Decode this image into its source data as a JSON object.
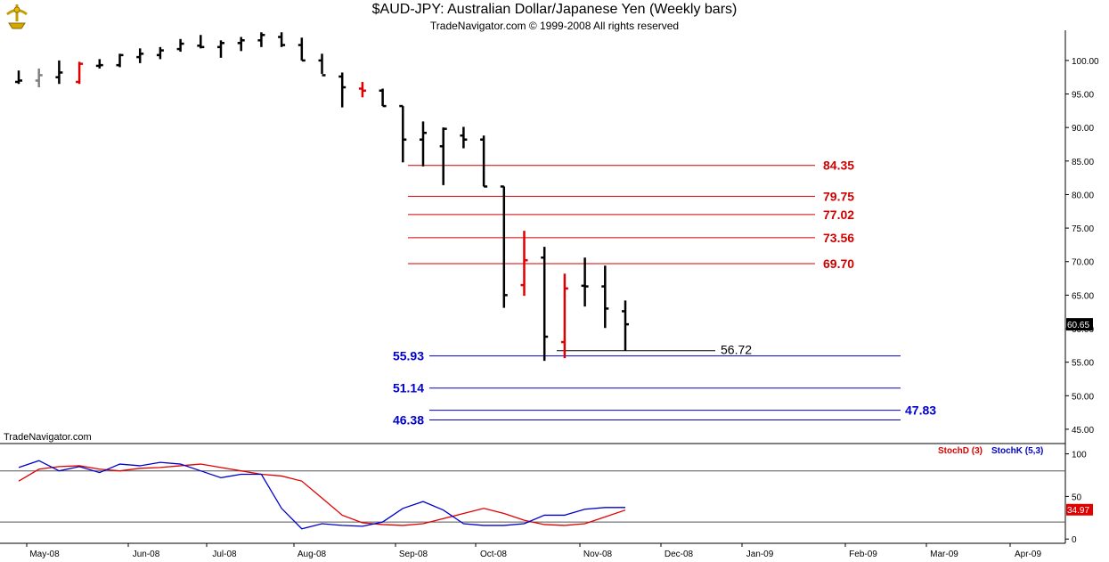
{
  "header": {
    "title": "$AUD-JPY:  Australian Dollar/Japanese Yen  (Weekly bars)",
    "subtitle": "TradeNavigator.com © 1999-2008 All rights reserved",
    "watermark": "TradeNavigator.com"
  },
  "colors": {
    "bar_up": "#000000",
    "bar_highlight": "#e00000",
    "bar_gray": "#808080",
    "fib_red": "#d00000",
    "fib_blue": "#0000cc",
    "stoch_d": "#e00000",
    "stoch_k": "#0000cc"
  },
  "chart_data": [
    {
      "type": "ohlc",
      "yticks": [
        "100.00",
        "95.00",
        "90.00",
        "85.00",
        "80.00",
        "75.00",
        "70.00",
        "65.00",
        "60.00",
        "55.00",
        "50.00",
        "45.00"
      ],
      "ylim": [
        43,
        104.5
      ],
      "x_tick_labels": [
        "May-08",
        "Jun-08",
        "Jul-08",
        "Aug-08",
        "Sep-08",
        "Oct-08",
        "Nov-08",
        "Dec-08",
        "Jan-09",
        "Feb-09",
        "Mar-09",
        "Apr-09"
      ],
      "last_price_label": "60.65",
      "bars": [
        {
          "o": 96.8,
          "h": 98.5,
          "l": 96.5,
          "c": 97.0,
          "color": "black"
        },
        {
          "o": 97.0,
          "h": 98.8,
          "l": 96.0,
          "c": 97.8,
          "color": "gray"
        },
        {
          "o": 97.5,
          "h": 100.0,
          "l": 96.5,
          "c": 98.2,
          "color": "black"
        },
        {
          "o": 96.8,
          "h": 99.8,
          "l": 96.5,
          "c": 99.5,
          "color": "red"
        },
        {
          "o": 99.2,
          "h": 100.2,
          "l": 98.8,
          "c": 99.3,
          "color": "black"
        },
        {
          "o": 99.3,
          "h": 101.0,
          "l": 99.0,
          "c": 100.8,
          "color": "black"
        },
        {
          "o": 100.5,
          "h": 101.8,
          "l": 99.6,
          "c": 101.0,
          "color": "black"
        },
        {
          "o": 100.8,
          "h": 102.0,
          "l": 100.2,
          "c": 101.5,
          "color": "black"
        },
        {
          "o": 101.7,
          "h": 103.2,
          "l": 101.3,
          "c": 102.5,
          "color": "black"
        },
        {
          "o": 102.2,
          "h": 103.8,
          "l": 101.8,
          "c": 102.0,
          "color": "black"
        },
        {
          "o": 102.0,
          "h": 103.0,
          "l": 100.4,
          "c": 102.6,
          "color": "black"
        },
        {
          "o": 102.6,
          "h": 103.5,
          "l": 101.4,
          "c": 103.0,
          "color": "black"
        },
        {
          "o": 103.0,
          "h": 104.2,
          "l": 102.0,
          "c": 103.8,
          "color": "black"
        },
        {
          "o": 103.5,
          "h": 104.2,
          "l": 102.0,
          "c": 102.3,
          "color": "black"
        },
        {
          "o": 102.3,
          "h": 103.4,
          "l": 100.0,
          "c": 100.0,
          "color": "black"
        },
        {
          "o": 100.0,
          "h": 101.0,
          "l": 98.0,
          "c": 97.8,
          "color": "black"
        },
        {
          "o": 97.6,
          "h": 98.2,
          "l": 93.0,
          "c": 96.0,
          "color": "black"
        },
        {
          "o": 95.8,
          "h": 96.8,
          "l": 94.5,
          "c": 95.5,
          "color": "red"
        },
        {
          "o": 95.5,
          "h": 95.8,
          "l": 93.2,
          "c": 93.2,
          "color": "black"
        },
        {
          "o": 93.2,
          "h": 93.2,
          "l": 84.8,
          "c": 88.2,
          "color": "black"
        },
        {
          "o": 88.2,
          "h": 90.9,
          "l": 84.2,
          "c": 89.2,
          "color": "black"
        },
        {
          "o": 87.2,
          "h": 90.0,
          "l": 81.4,
          "c": 89.8,
          "color": "black"
        },
        {
          "o": 88.8,
          "h": 90.1,
          "l": 86.9,
          "c": 88.2,
          "color": "black"
        },
        {
          "o": 88.2,
          "h": 88.8,
          "l": 81.2,
          "c": 81.2,
          "color": "black"
        },
        {
          "o": 81.2,
          "h": 81.2,
          "l": 63.1,
          "c": 65.0,
          "color": "black"
        },
        {
          "o": 66.5,
          "h": 74.6,
          "l": 64.9,
          "c": 70.2,
          "color": "red"
        },
        {
          "o": 70.6,
          "h": 72.2,
          "l": 55.2,
          "c": 58.8,
          "color": "black"
        },
        {
          "o": 58.0,
          "h": 68.2,
          "l": 55.6,
          "c": 66.0,
          "color": "red"
        },
        {
          "o": 66.4,
          "h": 70.6,
          "l": 63.3,
          "c": 66.3,
          "color": "black"
        },
        {
          "o": 66.3,
          "h": 69.4,
          "l": 60.1,
          "c": 63.0,
          "color": "black"
        },
        {
          "o": 62.6,
          "h": 64.2,
          "l": 56.7,
          "c": 60.65,
          "color": "black"
        }
      ],
      "fib_levels_red": [
        "84.35",
        "79.75",
        "77.02",
        "73.56",
        "69.70"
      ],
      "fib_levels_blue": [
        "55.93",
        "51.14",
        "46.38"
      ],
      "blue_extra_label": "47.83",
      "low_label": "56.72"
    },
    {
      "type": "line",
      "name": "stochastic",
      "yticks": [
        "100",
        "50",
        "0"
      ],
      "ylim": [
        -5,
        110
      ],
      "hlines": [
        80,
        20
      ],
      "last_value_label": "34.97",
      "series": [
        {
          "name": "StochD (3)",
          "values": [
            68,
            82,
            85,
            86,
            82,
            80,
            83,
            84,
            86,
            88,
            84,
            80,
            76,
            74,
            68,
            48,
            28,
            19,
            17,
            16,
            18,
            24,
            30,
            36,
            30,
            22,
            17,
            16,
            18,
            26,
            34
          ]
        },
        {
          "name": "StochK (5,3)",
          "values": [
            84,
            92,
            80,
            85,
            78,
            88,
            86,
            90,
            88,
            80,
            72,
            76,
            76,
            36,
            12,
            18,
            16,
            15,
            20,
            36,
            44,
            34,
            18,
            16,
            16,
            18,
            28,
            28,
            35,
            37,
            37
          ]
        }
      ]
    }
  ]
}
